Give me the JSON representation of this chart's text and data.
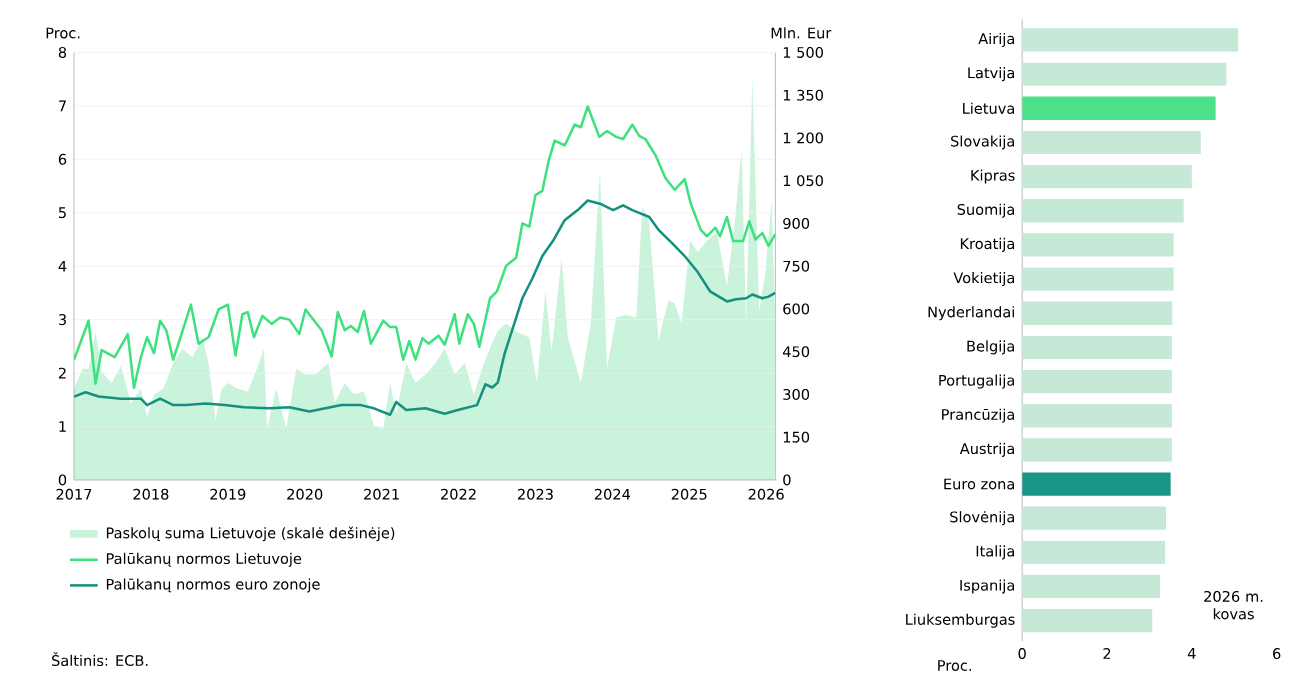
{
  "chart_data": [
    {
      "type": "line",
      "ylabel": "Proc.",
      "y2label": "Mln. Eur",
      "xlim": [
        2017,
        2026.12
      ],
      "xticks": [
        2017,
        2018,
        2019,
        2020,
        2021,
        2022,
        2023,
        2024,
        2025,
        2026
      ],
      "ylim": [
        0,
        8
      ],
      "yticks": [
        0,
        1,
        2,
        3,
        4,
        5,
        6,
        7,
        8
      ],
      "y2lim": [
        0,
        1500
      ],
      "y2ticks": [
        0,
        150,
        300,
        450,
        600,
        750,
        900,
        {
          "value": 1050,
          "label": "1 050"
        },
        {
          "value": 1200,
          "label": "1 200"
        },
        {
          "value": 1350,
          "label": "1 350"
        },
        {
          "value": 1500,
          "label": "1 500"
        }
      ],
      "grid": "y",
      "legend": "bottom",
      "marker": "none",
      "annotations": [
        "Šaltinis: ECB."
      ],
      "series": [
        {
          "name": "Paskolų suma Lietuvoje (skalė dešinėje)",
          "type": "area",
          "axis": "y2",
          "color": "#c9f3da",
          "x": [
            2017,
            2017.11,
            2017.19,
            2017.28,
            2017.36,
            2017.49,
            2017.61,
            2017.74,
            2017.87,
            2017.95,
            2018.04,
            2018.16,
            2018.29,
            2018.41,
            2018.54,
            2018.67,
            2018.75,
            2018.84,
            2018.92,
            2019.0,
            2019.13,
            2019.26,
            2019.38,
            2019.47,
            2019.51,
            2019.63,
            2019.76,
            2019.89,
            2020.01,
            2020.14,
            2020.31,
            2020.39,
            2020.52,
            2020.64,
            2020.77,
            2020.9,
            2021.02,
            2021.11,
            2021.19,
            2021.32,
            2021.44,
            2021.57,
            2021.7,
            2021.82,
            2021.95,
            2022.08,
            2022.2,
            2022.33,
            2022.5,
            2022.62,
            2022.75,
            2022.92,
            2023.02,
            2023.13,
            2023.21,
            2023.34,
            2023.42,
            2023.59,
            2023.72,
            2023.84,
            2023.93,
            2024.05,
            2024.18,
            2024.31,
            2024.39,
            2024.48,
            2024.6,
            2024.73,
            2024.81,
            2024.9,
            2025.01,
            2025.11,
            2025.23,
            2025.36,
            2025.49,
            2025.59,
            2025.68,
            2025.74,
            2025.82,
            2025.91,
            2025.99,
            2026.07,
            2026.12
          ],
          "values": [
            320,
            390,
            390,
            520,
            380,
            340,
            400,
            270,
            320,
            220,
            300,
            320,
            410,
            460,
            430,
            500,
            410,
            210,
            320,
            340,
            320,
            310,
            390,
            460,
            180,
            320,
            180,
            390,
            370,
            370,
            410,
            270,
            340,
            300,
            310,
            190,
            180,
            340,
            230,
            410,
            340,
            370,
            410,
            460,
            370,
            410,
            300,
            410,
            520,
            550,
            520,
            500,
            340,
            660,
            450,
            780,
            500,
            340,
            550,
            1090,
            390,
            570,
            580,
            570,
            960,
            900,
            490,
            630,
            620,
            550,
            840,
            800,
            840,
            870,
            680,
            900,
            1160,
            540,
            1410,
            590,
            730,
            980,
            550
          ]
        },
        {
          "name": "Palūkanų normos Lietuvoje",
          "color": "#3ee07f",
          "x": [
            2017,
            2017.19,
            2017.28,
            2017.36,
            2017.53,
            2017.7,
            2017.78,
            2017.87,
            2017.95,
            2018.04,
            2018.12,
            2018.2,
            2018.29,
            2018.37,
            2018.52,
            2018.62,
            2018.75,
            2018.88,
            2019.0,
            2019.1,
            2019.19,
            2019.26,
            2019.34,
            2019.45,
            2019.57,
            2019.68,
            2019.8,
            2019.93,
            2020.01,
            2020.22,
            2020.35,
            2020.43,
            2020.52,
            2020.6,
            2020.69,
            2020.77,
            2020.86,
            2021.02,
            2021.11,
            2021.19,
            2021.28,
            2021.36,
            2021.44,
            2021.53,
            2021.61,
            2021.74,
            2021.82,
            2021.95,
            2022.01,
            2022.12,
            2022.2,
            2022.27,
            2022.41,
            2022.5,
            2022.62,
            2022.75,
            2022.83,
            2022.92,
            2023.0,
            2023.09,
            2023.17,
            2023.25,
            2023.38,
            2023.51,
            2023.59,
            2023.68,
            2023.83,
            2023.93,
            2024.05,
            2024.14,
            2024.26,
            2024.35,
            2024.43,
            2024.56,
            2024.69,
            2024.81,
            2024.94,
            2025.02,
            2025.15,
            2025.23,
            2025.34,
            2025.4,
            2025.49,
            2025.57,
            2025.7,
            2025.78,
            2025.86,
            2025.95,
            2026.03,
            2026.12
          ],
          "values": [
            2.25,
            2.98,
            1.8,
            2.43,
            2.3,
            2.73,
            1.72,
            2.3,
            2.67,
            2.37,
            2.98,
            2.8,
            2.25,
            2.6,
            3.28,
            2.55,
            2.67,
            3.19,
            3.28,
            2.33,
            3.1,
            3.14,
            2.67,
            3.07,
            2.92,
            3.04,
            3.0,
            2.73,
            3.19,
            2.8,
            2.31,
            3.14,
            2.8,
            2.88,
            2.77,
            3.16,
            2.55,
            2.98,
            2.86,
            2.86,
            2.25,
            2.6,
            2.25,
            2.65,
            2.55,
            2.7,
            2.53,
            3.1,
            2.55,
            3.1,
            2.92,
            2.49,
            3.4,
            3.53,
            4.01,
            4.16,
            4.8,
            4.74,
            5.33,
            5.41,
            5.96,
            6.35,
            6.26,
            6.65,
            6.6,
            6.99,
            6.42,
            6.53,
            6.42,
            6.38,
            6.65,
            6.44,
            6.38,
            6.08,
            5.65,
            5.43,
            5.63,
            5.17,
            4.68,
            4.56,
            4.72,
            4.56,
            4.92,
            4.47,
            4.47,
            4.84,
            4.5,
            4.62,
            4.38,
            4.6
          ]
        },
        {
          "name": "Palūkanų normos euro zonoje",
          "color": "#16907e",
          "x": [
            2017,
            2017.15,
            2017.32,
            2017.61,
            2017.87,
            2017.95,
            2018.12,
            2018.29,
            2018.46,
            2018.71,
            2018.96,
            2019.21,
            2019.55,
            2019.8,
            2020.06,
            2020.27,
            2020.48,
            2020.73,
            2020.9,
            2021.11,
            2021.19,
            2021.32,
            2021.57,
            2021.82,
            2021.99,
            2022.24,
            2022.35,
            2022.44,
            2022.51,
            2022.6,
            2022.71,
            2022.83,
            2022.96,
            2023.09,
            2023.24,
            2023.38,
            2023.55,
            2023.68,
            2023.84,
            2024.01,
            2024.14,
            2024.26,
            2024.48,
            2024.6,
            2024.77,
            2024.94,
            2025.11,
            2025.27,
            2025.49,
            2025.61,
            2025.74,
            2025.82,
            2025.95,
            2026.03,
            2026.12
          ],
          "values": [
            1.56,
            1.64,
            1.56,
            1.52,
            1.52,
            1.4,
            1.52,
            1.4,
            1.4,
            1.43,
            1.4,
            1.36,
            1.34,
            1.36,
            1.28,
            1.34,
            1.4,
            1.4,
            1.34,
            1.22,
            1.46,
            1.31,
            1.34,
            1.24,
            1.31,
            1.4,
            1.79,
            1.73,
            1.82,
            2.37,
            2.86,
            3.4,
            3.77,
            4.19,
            4.5,
            4.86,
            5.05,
            5.23,
            5.17,
            5.05,
            5.14,
            5.05,
            4.92,
            4.68,
            4.44,
            4.19,
            3.89,
            3.53,
            3.34,
            3.38,
            3.4,
            3.47,
            3.4,
            3.43,
            3.5
          ]
        }
      ]
    },
    {
      "type": "bar",
      "orientation": "horizontal",
      "xlabel": "Proc.",
      "xlim": [
        0,
        6
      ],
      "xticks": [
        0,
        2,
        4,
        6
      ],
      "annotations": [
        "2026 m. kovas"
      ],
      "categories": [
        "Airija",
        "Latvija",
        "Lietuva",
        "Slovakija",
        "Kipras",
        "Suomija",
        "Kroatija",
        "Vokietija",
        "Nyderlandai",
        "Belgija",
        "Portugalija",
        "Prancūzija",
        "Austrija",
        "Euro zona",
        "Slovėnija",
        "Italija",
        "Ispanija",
        "Liuksemburgas"
      ],
      "values": [
        5.09,
        4.82,
        4.56,
        4.21,
        4.0,
        3.81,
        3.57,
        3.57,
        3.54,
        3.53,
        3.53,
        3.53,
        3.53,
        3.5,
        3.39,
        3.37,
        3.25,
        3.07
      ],
      "colors": [
        "#c5e8d7",
        "#c5e8d7",
        "#4ddf8a",
        "#c5e8d7",
        "#c5e8d7",
        "#c5e8d7",
        "#c5e8d7",
        "#c5e8d7",
        "#c5e8d7",
        "#c5e8d7",
        "#c5e8d7",
        "#c5e8d7",
        "#c5e8d7",
        "#1a9485",
        "#c5e8d7",
        "#c5e8d7",
        "#c5e8d7",
        "#c5e8d7"
      ]
    }
  ]
}
